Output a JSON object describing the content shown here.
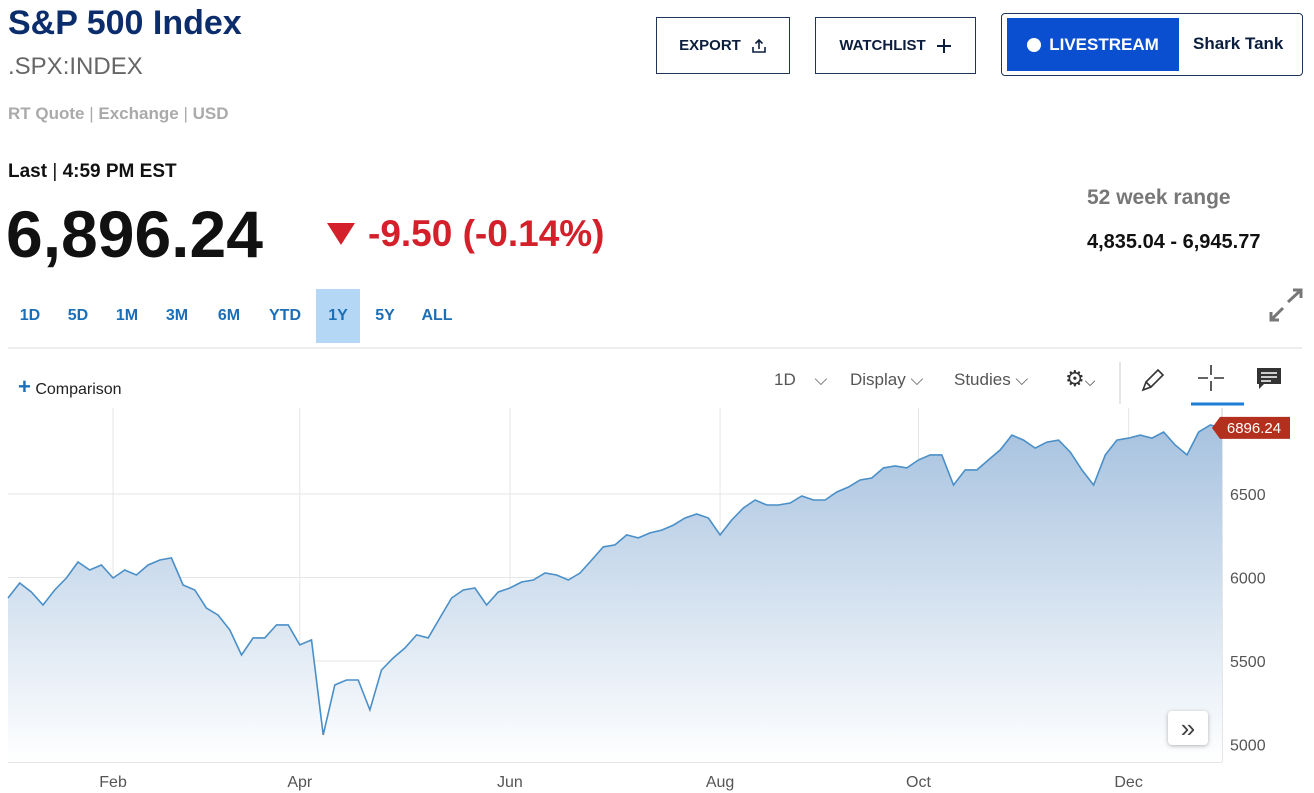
{
  "header": {
    "title": "S&P 500 Index",
    "symbol": ".SPX:INDEX",
    "quote_info": [
      "RT Quote",
      "Exchange",
      "USD"
    ]
  },
  "buttons": {
    "export": "EXPORT",
    "watchlist": "WATCHLIST",
    "livestream": "LIVESTREAM",
    "show": "Shark Tank"
  },
  "quote": {
    "last_label": "Last",
    "time": "4:59 PM EST",
    "price": "6,896.24",
    "change": "-9.50 (-0.14%)",
    "range_label": "52 week range",
    "range_value": "4,835.04 - 6,945.77"
  },
  "tabs": [
    "1D",
    "5D",
    "1M",
    "3M",
    "6M",
    "YTD",
    "1Y",
    "5Y",
    "ALL"
  ],
  "active_tab": 6,
  "toolbar": {
    "comparison": "Comparison",
    "interval": "1D",
    "display": "Display",
    "studies": "Studies"
  },
  "chart_data": {
    "type": "line",
    "color": "#4a8fc7",
    "grid": true,
    "last_value_label": "6896.24",
    "ylim": [
      4895,
      7015
    ],
    "yticks": [
      5000,
      5500,
      6000,
      6500
    ],
    "categories": [
      null,
      null,
      null,
      null,
      null,
      null,
      null,
      null,
      null,
      "Feb",
      null,
      null,
      null,
      null,
      null,
      null,
      null,
      null,
      null,
      null,
      null,
      null,
      null,
      null,
      null,
      "Apr",
      null,
      null,
      null,
      null,
      null,
      null,
      null,
      null,
      null,
      null,
      null,
      null,
      null,
      null,
      null,
      null,
      null,
      "Jun",
      null,
      null,
      null,
      null,
      null,
      null,
      null,
      null,
      null,
      null,
      null,
      null,
      null,
      null,
      null,
      null,
      null,
      "Aug",
      null,
      null,
      null,
      null,
      null,
      null,
      null,
      null,
      null,
      null,
      null,
      null,
      null,
      null,
      null,
      null,
      "Oct",
      null,
      null,
      null,
      null,
      null,
      null,
      null,
      null,
      null,
      null,
      null,
      null,
      null,
      null,
      null,
      null,
      null,
      "Dec",
      null,
      null,
      null,
      null,
      null,
      null,
      null,
      null
    ],
    "values": [
      5877,
      5967,
      5913,
      5835,
      5925,
      5997,
      6093,
      6045,
      6075,
      5997,
      6045,
      6015,
      6075,
      6105,
      6117,
      5955,
      5925,
      5817,
      5775,
      5686,
      5536,
      5638,
      5638,
      5716,
      5716,
      5596,
      5626,
      5057,
      5356,
      5386,
      5386,
      5207,
      5446,
      5518,
      5578,
      5656,
      5638,
      5758,
      5877,
      5925,
      5937,
      5835,
      5913,
      5937,
      5973,
      5985,
      6027,
      6015,
      5985,
      6027,
      6105,
      6183,
      6195,
      6255,
      6237,
      6267,
      6284,
      6314,
      6356,
      6380,
      6356,
      6255,
      6344,
      6416,
      6464,
      6434,
      6434,
      6446,
      6488,
      6464,
      6464,
      6512,
      6542,
      6584,
      6596,
      6656,
      6668,
      6656,
      6704,
      6734,
      6734,
      6554,
      6644,
      6644,
      6704,
      6764,
      6853,
      6823,
      6775,
      6811,
      6823,
      6751,
      6644,
      6554,
      6734,
      6823,
      6835,
      6853,
      6835,
      6871,
      6793,
      6734,
      6871,
      6913,
      6896.24
    ]
  }
}
